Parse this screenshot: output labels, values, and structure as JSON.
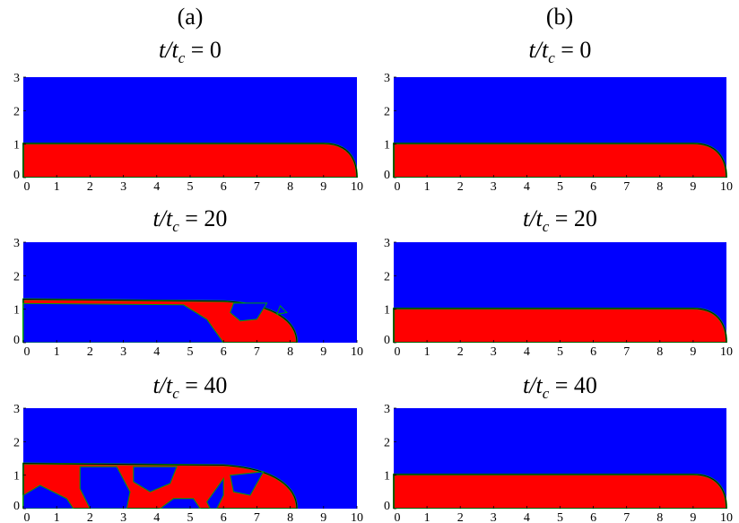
{
  "columns": [
    "(a)",
    "(b)"
  ],
  "panels": [
    {
      "title": {
        "var": "t/t",
        "sub": "c",
        "rest": " = 0"
      },
      "xlim": [
        0,
        10
      ],
      "ylim": [
        0,
        3
      ],
      "xticks": [
        0,
        1,
        2,
        3,
        4,
        5,
        6,
        7,
        8,
        9,
        10
      ],
      "yticks": [
        0,
        1,
        2,
        3
      ]
    },
    {
      "title": {
        "var": "t/t",
        "sub": "c",
        "rest": " = 0"
      },
      "xlim": [
        0,
        10
      ],
      "ylim": [
        0,
        3
      ],
      "xticks": [
        0,
        1,
        2,
        3,
        4,
        5,
        6,
        7,
        8,
        9,
        10
      ],
      "yticks": [
        0,
        1,
        2,
        3
      ]
    },
    {
      "title": {
        "var": "t/t",
        "sub": "c",
        "rest": " = 20"
      },
      "xlim": [
        0,
        10
      ],
      "ylim": [
        0,
        3
      ],
      "xticks": [
        0,
        1,
        2,
        3,
        4,
        5,
        6,
        7,
        8,
        9,
        10
      ],
      "yticks": [
        0,
        1,
        2,
        3
      ]
    },
    {
      "title": {
        "var": "t/t",
        "sub": "c",
        "rest": " = 20"
      },
      "xlim": [
        0,
        10
      ],
      "ylim": [
        0,
        3
      ],
      "xticks": [
        0,
        1,
        2,
        3,
        4,
        5,
        6,
        7,
        8,
        9,
        10
      ],
      "yticks": [
        0,
        1,
        2,
        3
      ]
    },
    {
      "title": {
        "var": "t/t",
        "sub": "c",
        "rest": " = 40"
      },
      "xlim": [
        0,
        10
      ],
      "ylim": [
        0,
        3
      ],
      "xticks": [
        0,
        1,
        2,
        3,
        4,
        5,
        6,
        7,
        8,
        9,
        10
      ],
      "yticks": [
        0,
        1,
        2,
        3
      ]
    },
    {
      "title": {
        "var": "t/t",
        "sub": "c",
        "rest": " = 40"
      },
      "xlim": [
        0,
        10
      ],
      "ylim": [
        0,
        3
      ],
      "xticks": [
        0,
        1,
        2,
        3,
        4,
        5,
        6,
        7,
        8,
        9,
        10
      ],
      "yticks": [
        0,
        1,
        2,
        3
      ]
    }
  ]
}
